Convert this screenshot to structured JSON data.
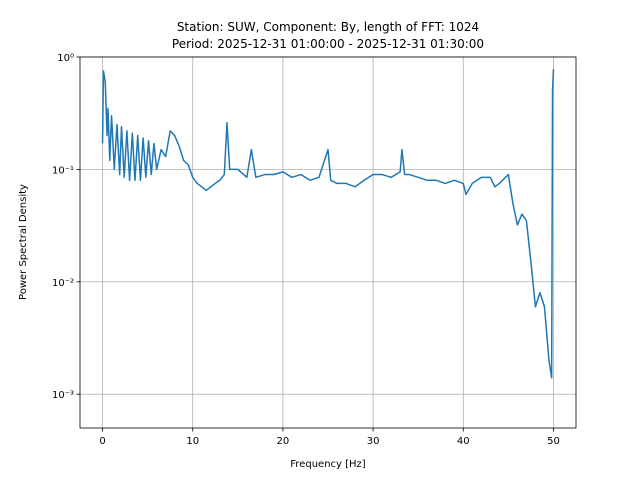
{
  "chart_data": {
    "type": "line",
    "title": [
      "Station: SUW, Component: By, length of FFT: 1024",
      "Period: 2025-12-31 01:00:00 - 2025-12-31 01:30:00"
    ],
    "xlabel": "Frequency [Hz]",
    "ylabel": "Power Spectral Density",
    "log_y": true,
    "grid": true,
    "color": "#1f77b4",
    "xlim": [
      -2.5,
      52.5
    ],
    "xticks": [
      0,
      10,
      20,
      30,
      40,
      50
    ],
    "ylim": [
      0.0005,
      1
    ],
    "yticks": [
      {
        "value": 0.001,
        "label": "10⁻³"
      },
      {
        "value": 0.01,
        "label": "10⁻²"
      },
      {
        "value": 0.1,
        "label": "10⁻¹"
      },
      {
        "value": 1,
        "label": "10⁰"
      }
    ],
    "x": [
      0,
      0.1,
      0.3,
      0.5,
      0.6,
      0.8,
      1.0,
      1.3,
      1.6,
      1.9,
      2.1,
      2.4,
      2.7,
      3.0,
      3.3,
      3.6,
      3.9,
      4.2,
      4.5,
      4.8,
      5.1,
      5.4,
      5.7,
      6.0,
      6.5,
      7.0,
      7.5,
      8.0,
      8.5,
      9.0,
      9.5,
      10.0,
      10.5,
      11.0,
      11.5,
      12.0,
      12.5,
      13.0,
      13.5,
      13.8,
      14.1,
      15,
      16,
      16.5,
      17,
      18,
      19,
      20,
      21,
      22,
      23,
      24,
      25,
      25.3,
      26,
      27,
      28,
      29,
      30,
      31,
      32,
      33,
      33.2,
      33.5,
      34,
      35,
      36,
      37,
      38,
      39,
      40,
      40.3,
      41,
      42,
      43,
      43.5,
      44,
      45,
      45.5,
      46,
      46.5,
      47,
      47.5,
      48,
      48.5,
      49,
      49.5,
      49.8,
      49.9,
      50
    ],
    "series": [
      {
        "name": "PSD",
        "values": [
          0.17,
          0.75,
          0.6,
          0.2,
          0.35,
          0.12,
          0.3,
          0.1,
          0.25,
          0.09,
          0.24,
          0.085,
          0.22,
          0.08,
          0.21,
          0.08,
          0.2,
          0.08,
          0.19,
          0.085,
          0.18,
          0.09,
          0.17,
          0.1,
          0.15,
          0.13,
          0.22,
          0.2,
          0.16,
          0.12,
          0.11,
          0.085,
          0.075,
          0.07,
          0.065,
          0.07,
          0.075,
          0.08,
          0.09,
          0.26,
          0.1,
          0.1,
          0.085,
          0.15,
          0.085,
          0.09,
          0.09,
          0.095,
          0.085,
          0.09,
          0.08,
          0.085,
          0.15,
          0.08,
          0.075,
          0.075,
          0.07,
          0.08,
          0.09,
          0.09,
          0.085,
          0.095,
          0.15,
          0.09,
          0.09,
          0.085,
          0.08,
          0.08,
          0.075,
          0.08,
          0.075,
          0.06,
          0.075,
          0.085,
          0.085,
          0.07,
          0.075,
          0.09,
          0.05,
          0.032,
          0.04,
          0.035,
          0.015,
          0.006,
          0.008,
          0.006,
          0.002,
          0.0014,
          0.5,
          0.78
        ]
      }
    ]
  }
}
